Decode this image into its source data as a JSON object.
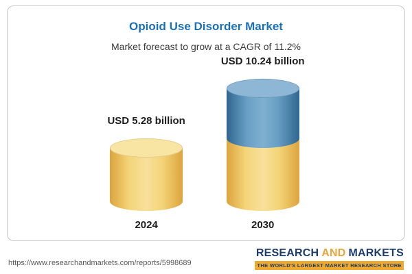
{
  "chart_data": {
    "type": "bar",
    "bar_style": "cylinder",
    "title": "Opioid Use Disorder Market",
    "subtitle": "Market forecast to grow at a CAGR of 11.2%",
    "cagr": "11.2%",
    "categories": [
      "2024",
      "2030"
    ],
    "values": [
      5.28,
      10.24
    ],
    "unit": "USD billion",
    "value_labels": [
      "USD 5.28 billion",
      "USD 10.24 billion"
    ],
    "legend": false,
    "colors": {
      "title_text": "#1A70B8",
      "bar_2024": "#F2CF72",
      "bar_2030_top_segment": "#5C90B8",
      "bar_2030_bottom_segment": "#F2CF72"
    }
  },
  "footer": {
    "url": "https://www.researchandmarkets.com/reports/5998689"
  },
  "logo": {
    "name_part1": "RESEARCH",
    "name_part2": "AND",
    "name_part3": "MARKETS",
    "tagline": "THE WORLD'S LARGEST MARKET RESEARCH STORE"
  }
}
